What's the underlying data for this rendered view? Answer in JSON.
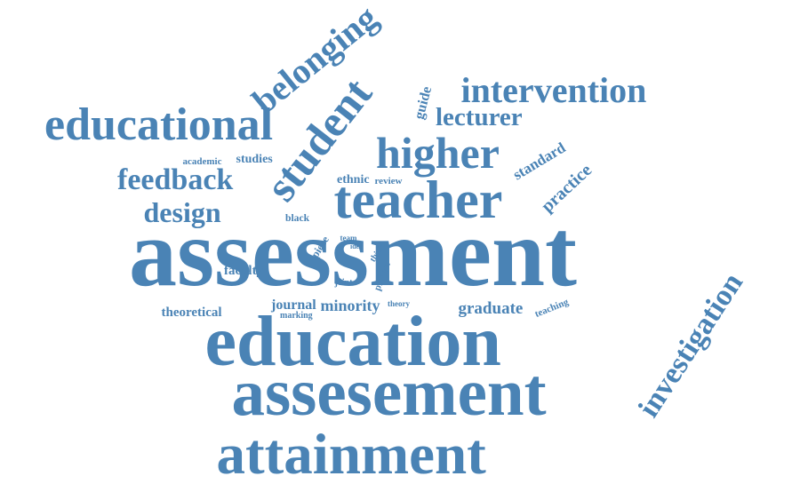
{
  "color": "#4a83b5",
  "words": {
    "assessment": "assessment",
    "education": "education",
    "assesement": "assesement",
    "attainment": "attainment",
    "investigation": "investigation",
    "student": "student",
    "teacher": "teacher",
    "educational": "educational",
    "intervention": "intervention",
    "higher": "higher",
    "belonging": "belonging",
    "feedback": "feedback",
    "design": "design",
    "lecturer": "lecturer",
    "guide": "guide",
    "standard": "standard",
    "practice": "practice",
    "graduate": "graduate",
    "minority": "minority",
    "journal": "journal",
    "theoretical": "theoretical",
    "faculty": "faculty",
    "academic": "academic",
    "studies": "studies",
    "ethnic": "ethnic",
    "review": "review",
    "black": "black",
    "piece": "piece",
    "team": "team",
    "idea": "idea",
    "think": "think",
    "project": "project",
    "joint": "joint",
    "theory": "theory",
    "marking": "marking",
    "teaching": "teaching"
  }
}
